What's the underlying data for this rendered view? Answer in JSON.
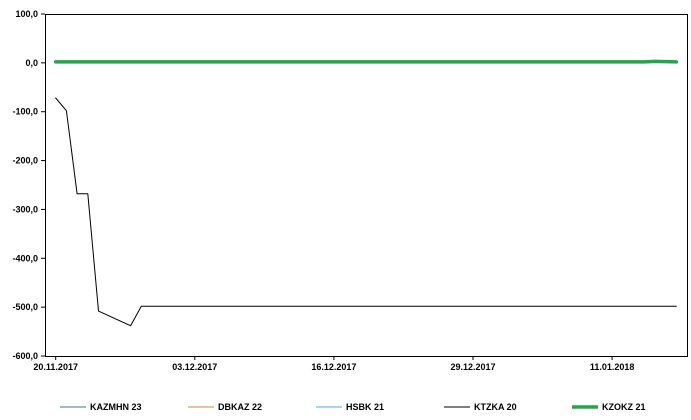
{
  "chart_data": {
    "type": "line",
    "ylim": [
      -600,
      100
    ],
    "y_ticks": [
      "100,0",
      "0,0",
      "-100,0",
      "-200,0",
      "-300,0",
      "-400,0",
      "-500,0",
      "-600,0"
    ],
    "y_tick_values": [
      100,
      0,
      -100,
      -200,
      -300,
      -400,
      -500,
      -600
    ],
    "x_ticks": [
      "20.11.2017",
      "03.12.2017",
      "16.12.2017",
      "29.12.2017",
      "11.01.2018"
    ],
    "x_tick_days": [
      0,
      13,
      26,
      39,
      52
    ],
    "x_range_days": [
      -1,
      59
    ],
    "grid": false,
    "legend_position": "bottom",
    "series": [
      {
        "name": "KAZMHN 23",
        "color": "#4472a0",
        "width": 1,
        "points": [
          [
            0,
            1
          ],
          [
            58,
            1
          ]
        ]
      },
      {
        "name": "DBKAZ 22",
        "color": "#d4863a",
        "width": 1,
        "points": [
          [
            0,
            1
          ],
          [
            58,
            1
          ]
        ]
      },
      {
        "name": "HSBK 21",
        "color": "#41b0e8",
        "width": 1,
        "points": [
          [
            0,
            1
          ],
          [
            58,
            1
          ]
        ]
      },
      {
        "name": "KTZKA 20",
        "color": "#000000",
        "width": 1,
        "points": [
          [
            0,
            -72
          ],
          [
            1,
            -98
          ],
          [
            2,
            -268
          ],
          [
            3,
            -268
          ],
          [
            4,
            -508
          ],
          [
            7,
            -538
          ],
          [
            8,
            -498
          ],
          [
            58,
            -498
          ]
        ]
      },
      {
        "name": "KZOKZ 21",
        "color": "#22a84a",
        "width": 3.5,
        "points": [
          [
            0,
            2
          ],
          [
            55,
            2
          ],
          [
            56,
            3
          ],
          [
            58,
            2
          ]
        ]
      }
    ]
  }
}
